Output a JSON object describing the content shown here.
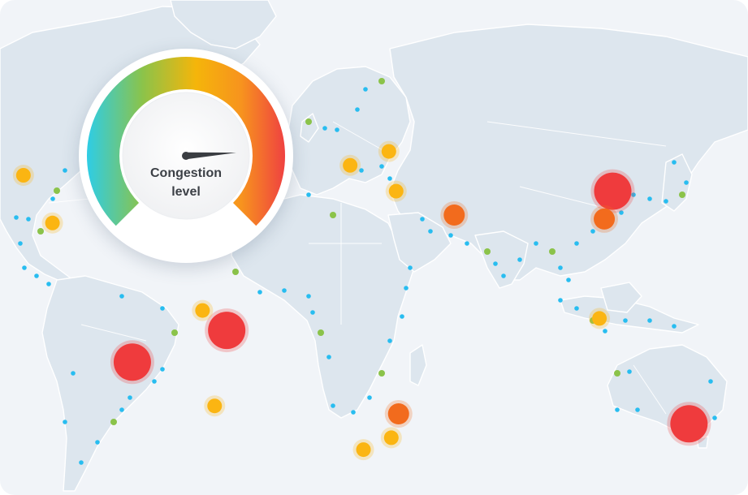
{
  "gauge": {
    "label_line1": "Congestion",
    "label_line2": "level",
    "level": 0.82,
    "gradient": [
      "#2ecde6",
      "#8bc34a",
      "#f5b50a",
      "#f7931e",
      "#ef4141"
    ]
  },
  "legend_colors": {
    "port": "#28bdf0",
    "low": "#8bc34a",
    "medium": "#fbb512",
    "high": "#f26b1d",
    "severe": "#ef3b3d"
  },
  "markers": [
    {
      "name": "north-america-west-port",
      "level": "medium",
      "lat": 35.0,
      "lon": -122.0
    },
    {
      "name": "north-america-west-port-2",
      "level": "medium",
      "lat": 23.0,
      "lon": -110.0
    },
    {
      "name": "brazil-north-port",
      "level": "severe",
      "lat": -4.0,
      "lon": -38.0
    },
    {
      "name": "peru-port",
      "level": "severe",
      "lat": -12.0,
      "lon": -77.0
    },
    {
      "name": "brazil-south-port",
      "level": "medium",
      "lat": -23.0,
      "lon": -43.0
    },
    {
      "name": "brazil-northeast-port",
      "level": "medium",
      "lat": 1.0,
      "lon": -48.0
    },
    {
      "name": "mozambique-port",
      "level": "high",
      "lat": -25.0,
      "lon": 33.0
    },
    {
      "name": "south-africa-port",
      "level": "medium",
      "lat": -31.0,
      "lon": 30.0
    },
    {
      "name": "egypt-port",
      "level": "medium",
      "lat": 31.0,
      "lon": 32.0
    },
    {
      "name": "mediterranean-port",
      "level": "medium",
      "lat": 37.5,
      "lon": 13.0
    },
    {
      "name": "turkey-port",
      "level": "medium",
      "lat": 41.0,
      "lon": 29.0
    },
    {
      "name": "persian-gulf-port",
      "level": "high",
      "lat": 25.0,
      "lon": 56.0
    },
    {
      "name": "shanghai-port",
      "level": "severe",
      "lat": 31.0,
      "lon": 121.5
    },
    {
      "name": "china-south-port",
      "level": "high",
      "lat": 24.0,
      "lon": 118.0
    },
    {
      "name": "indonesia-port",
      "level": "medium",
      "lat": -1.0,
      "lon": 116.0
    },
    {
      "name": "sydney-port",
      "level": "severe",
      "lat": -27.5,
      "lon": 153.0
    },
    {
      "name": "south-africa-cape-port",
      "level": "medium",
      "lat": -34.0,
      "lon": 18.5
    }
  ]
}
